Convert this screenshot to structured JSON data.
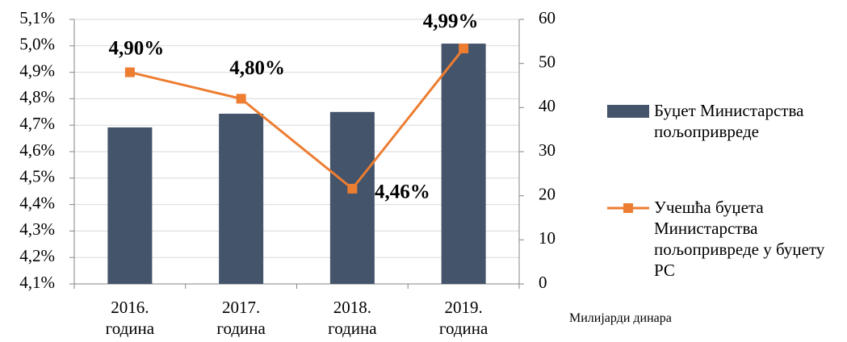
{
  "chart_data": {
    "type": "bar-line",
    "categories": [
      "2016. година",
      "2017. година",
      "2018. година",
      "2019. година"
    ],
    "series": [
      {
        "name": "Буџет Министарства пољопривреде",
        "color": "#44546a",
        "type": "bar",
        "axis": "y2",
        "values": [
          35.5,
          38.6,
          39.0,
          54.5
        ]
      },
      {
        "name": "Учешћа буџета Министарства пољопривреде у буџету РС",
        "color": "#ed7d31",
        "type": "line",
        "axis": "y",
        "values": [
          4.9,
          4.8,
          4.46,
          4.99
        ],
        "value_labels": [
          "4,90%",
          "4,80%",
          "4,46%",
          "4,99%"
        ]
      }
    ],
    "ylim": [
      4.1,
      5.1
    ],
    "yticks": [
      {
        "value": 4.1,
        "label": "4,1%"
      },
      {
        "value": 4.2,
        "label": "4,2%"
      },
      {
        "value": 4.3,
        "label": "4,3%"
      },
      {
        "value": 4.4,
        "label": "4,4%"
      },
      {
        "value": 4.5,
        "label": "4,5%"
      },
      {
        "value": 4.6,
        "label": "4,6%"
      },
      {
        "value": 4.7,
        "label": "4,7%"
      },
      {
        "value": 4.8,
        "label": "4,8%"
      },
      {
        "value": 4.9,
        "label": "4,9%"
      },
      {
        "value": 5.0,
        "label": "5,0%"
      },
      {
        "value": 5.1,
        "label": "5,1%"
      }
    ],
    "y2lim": [
      0,
      60
    ],
    "y2ticks": [
      0,
      10,
      20,
      30,
      40,
      50,
      60
    ],
    "y2label": "Милијарди динара",
    "grid": true
  }
}
